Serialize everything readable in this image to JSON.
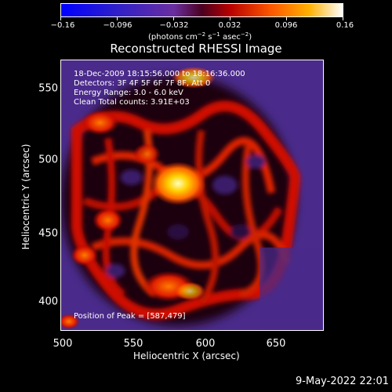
{
  "colorbar": {
    "tick_labels": [
      "−0.16",
      "−0.096",
      "−0.032",
      "0.032",
      "0.096",
      "0.16"
    ],
    "unit_text": "(photons cm",
    "unit_exp1": "−2",
    "unit_mid": " s",
    "unit_exp2": "−1",
    "unit_mid2": " asec",
    "unit_exp3": "−2",
    "unit_end": ")",
    "min": -0.16,
    "max": 0.16
  },
  "title": "Reconstructed RHESSI Image",
  "info": {
    "time_range": "18-Dec-2009 18:15:56.000 to 18:16:36.000",
    "detectors": "Detectors: 3F 4F 5F 6F 7F 8F, Att 0",
    "energy": "Energy Range: 3.0 - 6.0 keV",
    "clean": "Clean     Total counts: 3.91E+03",
    "peak": "Position of Peak = [587,479]"
  },
  "axes": {
    "xlabel": "Heliocentric X (arcsec)",
    "ylabel": "Heliocentric Y (arcsec)",
    "xticks": [
      "500",
      "550",
      "600",
      "650"
    ],
    "yticks": [
      "400",
      "450",
      "500",
      "550"
    ]
  },
  "timestamp": "9-May-2022 22:01",
  "colors": {
    "background": "#000000",
    "foreground": "#ffffff"
  }
}
